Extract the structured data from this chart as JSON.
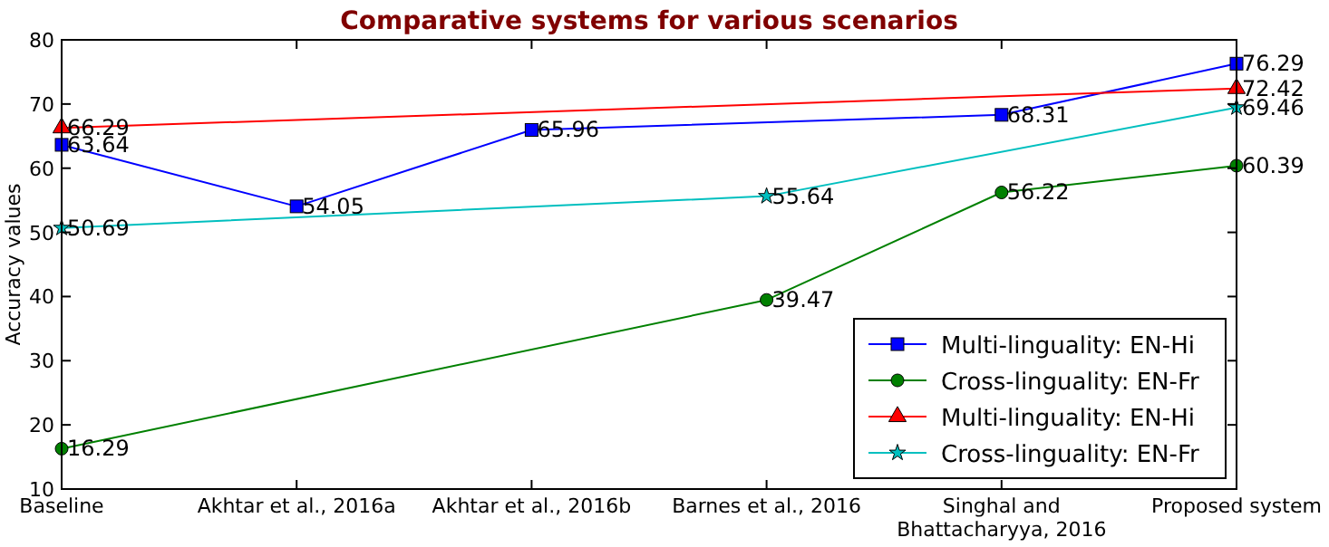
{
  "chart_data": {
    "type": "line",
    "title": "Comparative systems for various scenarios",
    "ylabel": "Accuracy values",
    "categories": [
      "Baseline",
      "Akhtar et al., 2016a",
      "Akhtar et al., 2016b",
      "Barnes et al., 2016",
      "Singhal and Bhattacharyya, 2016",
      "Proposed system"
    ],
    "series": [
      {
        "name": "Multi-linguality: EN-Hi",
        "color": "#0000ff",
        "marker": "square",
        "values": [
          63.64,
          54.05,
          65.96,
          null,
          68.31,
          76.29
        ]
      },
      {
        "name": "Cross-linguality: EN-Fr",
        "color": "#008000",
        "marker": "circle",
        "values": [
          16.29,
          null,
          null,
          39.47,
          56.22,
          60.39
        ]
      },
      {
        "name": "Multi-linguality: EN-Hi",
        "color": "#ff0000",
        "marker": "triangle",
        "values": [
          66.29,
          null,
          null,
          null,
          null,
          72.42
        ]
      },
      {
        "name": "Cross-linguality: EN-Fr",
        "color": "#00bfbf",
        "marker": "star",
        "values": [
          50.69,
          null,
          null,
          55.64,
          null,
          69.46
        ]
      }
    ],
    "ylim": [
      10,
      80
    ],
    "yticks": [
      10,
      20,
      30,
      40,
      50,
      60,
      70,
      80
    ],
    "grid": false,
    "legend": "bottom right",
    "data_labels": true
  }
}
